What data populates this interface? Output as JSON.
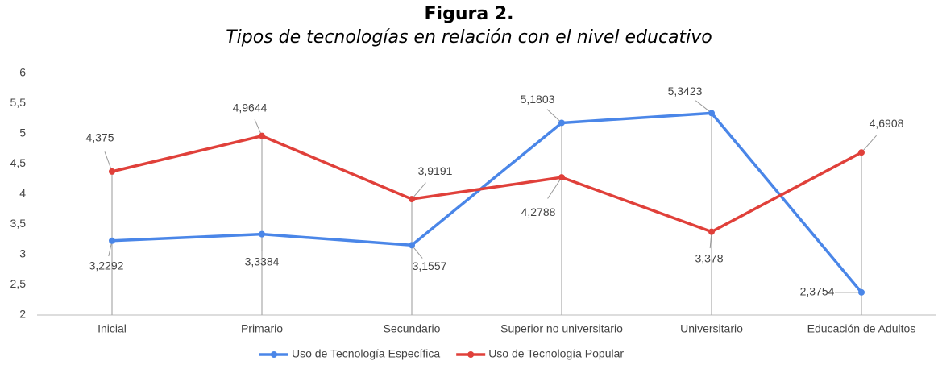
{
  "chart_data": {
    "type": "line",
    "title": "Figura 2.",
    "subtitle": "Tipos de tecnologías en relación con el nivel educativo",
    "categories": [
      "Inicial",
      "Primario",
      "Secundario",
      "Superior no universitario",
      "Universitario",
      "Educación de Adultos"
    ],
    "series": [
      {
        "name": "Uso de Tecnología Específica",
        "color": "#4a86e8",
        "values": [
          3.2292,
          3.3384,
          3.1557,
          5.1803,
          5.3423,
          2.3754
        ],
        "value_labels": [
          "3,2292",
          "3,3384",
          "3,1557",
          "5,1803",
          "5,3423",
          "2,3754"
        ]
      },
      {
        "name": "Uso de Tecnología Popular",
        "color": "#e0403a",
        "values": [
          4.375,
          4.9644,
          3.9191,
          4.2788,
          3.378,
          4.6908
        ],
        "value_labels": [
          "4,375",
          "4,9644",
          "3,9191",
          "4,2788",
          "3,378",
          "4,6908"
        ]
      }
    ],
    "ylim": [
      2,
      6
    ],
    "yticks": [
      2,
      {
        "value": 2.5,
        "label": "2,5"
      },
      3,
      {
        "value": 3.5,
        "label": "3,5"
      },
      4,
      {
        "value": 4.5,
        "label": "4,5"
      },
      5,
      {
        "value": 5.5,
        "label": "5,5"
      },
      6
    ],
    "legend": "bottom"
  }
}
